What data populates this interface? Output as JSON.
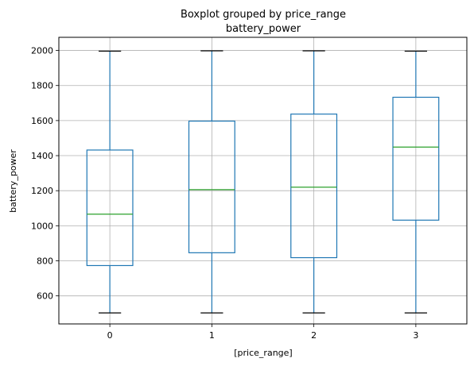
{
  "chart_data": {
    "type": "boxplot",
    "title": "Boxplot grouped by price_range",
    "subtitle": "battery_power",
    "xlabel": "[price_range]",
    "ylabel": "battery_power",
    "categories": [
      "0",
      "1",
      "2",
      "3"
    ],
    "ylim": [
      440,
      2075
    ],
    "yticks": [
      600,
      800,
      1000,
      1200,
      1400,
      1600,
      1800,
      2000
    ],
    "grid": true,
    "boxes": [
      {
        "category": "0",
        "whisker_low": 503,
        "q1": 773,
        "median": 1066,
        "q3": 1432,
        "whisker_high": 1996
      },
      {
        "category": "1",
        "whisker_low": 503,
        "q1": 846,
        "median": 1206,
        "q3": 1597,
        "whisker_high": 1998
      },
      {
        "category": "2",
        "whisker_low": 503,
        "q1": 818,
        "median": 1220,
        "q3": 1637,
        "whisker_high": 1998
      },
      {
        "category": "3",
        "whisker_low": 503,
        "q1": 1032,
        "median": 1449,
        "q3": 1733,
        "whisker_high": 1996
      }
    ],
    "colors": {
      "box": "#1f77b4",
      "median": "#2ca02c",
      "cap": "#000000",
      "grid": "#b0b0b0"
    }
  }
}
